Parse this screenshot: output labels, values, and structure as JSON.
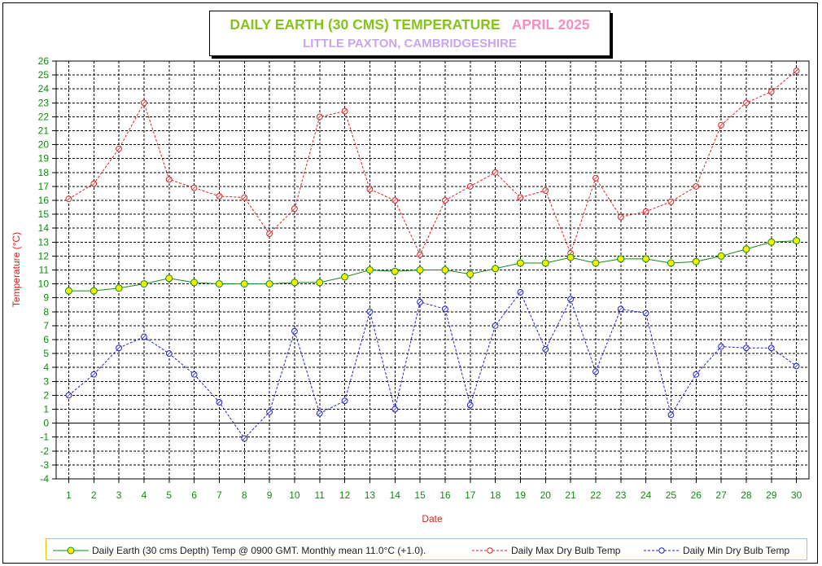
{
  "title": {
    "main": "DAILY EARTH (30 CMS) TEMPERATURE",
    "month": "APRIL 2025",
    "location": "LITTLE PAXTON, CAMBRIDGESHIRE"
  },
  "colors": {
    "title_main": "#86c31c",
    "title_month": "#f58fbf",
    "location": "#c7a6ea",
    "earth_line": "#138a13",
    "earth_marker": "#f2f200",
    "max_line": "#e02020",
    "min_line": "#2020d0",
    "axis_text": "#138a13",
    "ylabel": "#e02020",
    "legend_border": "#f2c200"
  },
  "legend": [
    {
      "label": "Daily Earth (30 cms Depth) Temp @ 0900 GMT. Monthly mean 11.0°C (+1.0).",
      "series": "earth"
    },
    {
      "label": "Daily Max Dry Bulb Temp",
      "series": "max"
    },
    {
      "label": "Daily Min Dry Bulb Temp",
      "series": "min"
    }
  ],
  "chart_data": {
    "type": "line",
    "xlabel": "Date",
    "ylabel": "Temperature (°C)",
    "x": [
      1,
      2,
      3,
      4,
      5,
      6,
      7,
      8,
      9,
      10,
      11,
      12,
      13,
      14,
      15,
      16,
      17,
      18,
      19,
      20,
      21,
      22,
      23,
      24,
      25,
      26,
      27,
      28,
      29,
      30
    ],
    "xlim": [
      0.5,
      30.5
    ],
    "ylim": [
      -4,
      26
    ],
    "yticks": [
      -4,
      -3,
      -2,
      -1,
      0,
      1,
      2,
      3,
      4,
      5,
      6,
      7,
      8,
      9,
      10,
      11,
      12,
      13,
      14,
      15,
      16,
      17,
      18,
      19,
      20,
      21,
      22,
      23,
      24,
      25,
      26
    ],
    "grid": true,
    "legend_position": "bottom",
    "series": [
      {
        "name": "Daily Earth (30 cms Depth) Temp @ 0900 GMT. Monthly mean 11.0°C (+1.0).",
        "key": "earth",
        "values": [
          9.5,
          9.5,
          9.7,
          10.0,
          10.4,
          10.1,
          10.0,
          10.0,
          10.0,
          10.1,
          10.1,
          10.5,
          11.0,
          10.9,
          11.0,
          11.0,
          10.7,
          11.1,
          11.5,
          11.5,
          11.9,
          11.5,
          11.8,
          11.8,
          11.5,
          11.6,
          12.0,
          12.5,
          13.0,
          13.1
        ]
      },
      {
        "name": "Daily Max Dry Bulb Temp",
        "key": "max",
        "values": [
          16.1,
          17.2,
          19.7,
          23.0,
          17.5,
          16.9,
          16.3,
          16.2,
          13.6,
          15.4,
          22.0,
          22.4,
          16.8,
          16.0,
          12.1,
          16.0,
          17.0,
          18.0,
          16.2,
          16.7,
          12.2,
          17.6,
          14.8,
          15.2,
          15.9,
          17.0,
          21.4,
          23.0,
          23.8,
          25.3
        ]
      },
      {
        "name": "Daily Min Dry Bulb Temp",
        "key": "min",
        "values": [
          2.0,
          3.5,
          5.4,
          6.2,
          5.0,
          3.5,
          1.5,
          -1.1,
          0.8,
          6.6,
          0.7,
          1.6,
          8.0,
          1.0,
          8.7,
          8.2,
          1.3,
          7.0,
          9.4,
          5.3,
          8.9,
          3.7,
          8.2,
          7.9,
          0.6,
          3.5,
          5.5,
          5.4,
          5.4,
          4.1
        ]
      }
    ]
  }
}
